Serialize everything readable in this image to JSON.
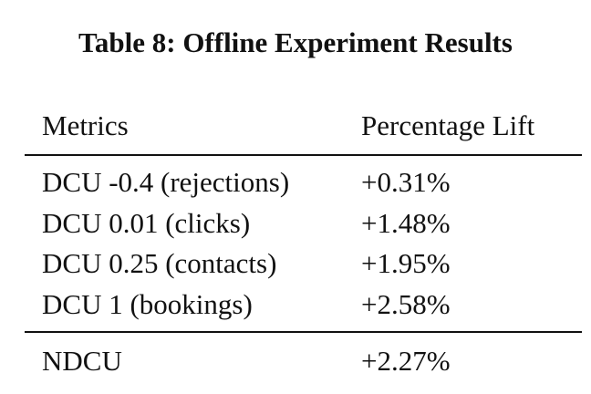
{
  "title": "Table 8: Offline Experiment Results",
  "table": {
    "header": [
      "Metrics",
      "Percentage Lift"
    ],
    "rows": [
      [
        "DCU -0.4 (rejections)",
        "+0.31%"
      ],
      [
        "DCU 0.01 (clicks)",
        "+1.48%"
      ],
      [
        "DCU 0.25 (contacts)",
        "+1.95%"
      ],
      [
        "DCU 1 (bookings)",
        "+2.58%"
      ]
    ],
    "footer": [
      "NDCU",
      "+2.27%"
    ]
  }
}
